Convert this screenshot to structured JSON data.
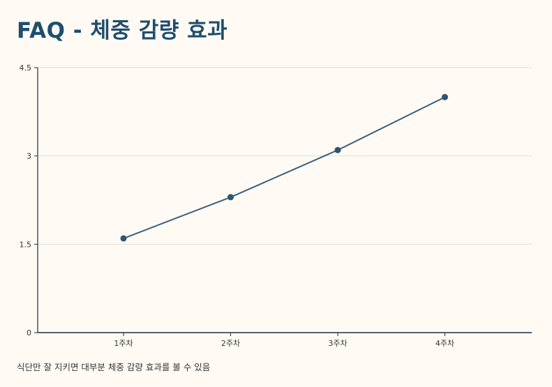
{
  "title": "FAQ - 체중 감량 효과",
  "caption": "식단만 잘 지키면 대부분 체중 감량 효과를 볼 수 있음",
  "colors": {
    "line": "#3b5f7f",
    "point": "#2f5472",
    "grid": "#dcdcdc",
    "axis": "#1f2f3f",
    "title": "#1f4e6e",
    "background": "#fffbf4"
  },
  "chart_data": {
    "type": "line",
    "categories": [
      "1주차",
      "2주차",
      "3주차",
      "4주차"
    ],
    "values": [
      1.6,
      2.3,
      3.1,
      4.0
    ],
    "ylim": [
      0,
      4.5
    ],
    "yticks": [
      0,
      1.5,
      3,
      4.5
    ],
    "ytick_labels": [
      "0",
      "1.5",
      "3",
      "4.5"
    ],
    "grid": true,
    "xlabel": "",
    "ylabel": ""
  }
}
